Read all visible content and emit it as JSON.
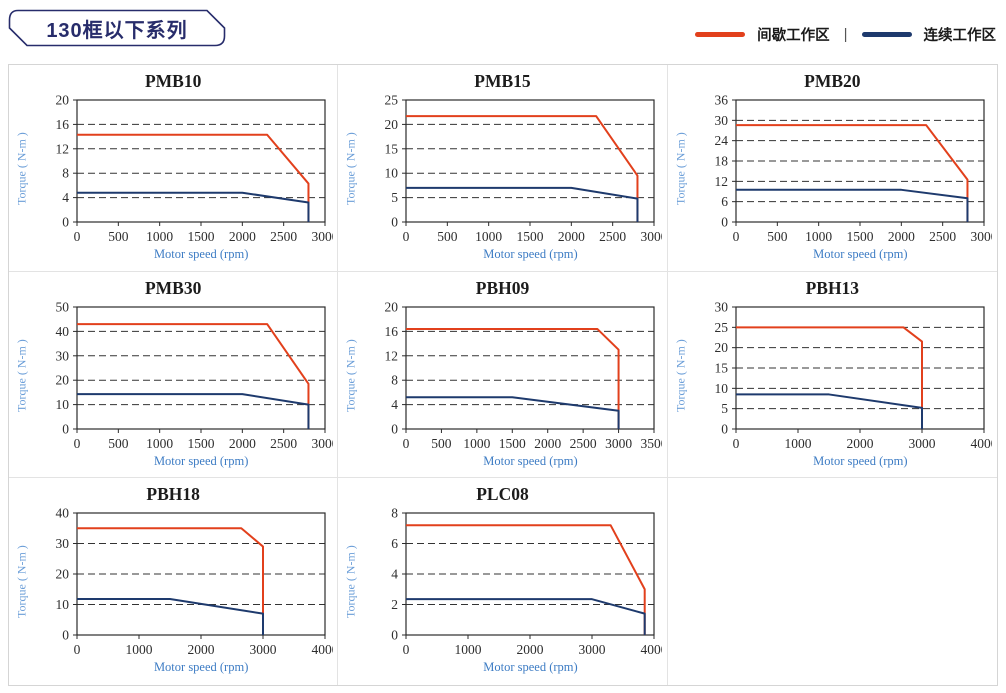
{
  "header": {
    "series_badge": "130框以下系列",
    "legend": {
      "intermittent": {
        "label": "间歇工作区",
        "color": "#e2401c"
      },
      "separator": "|",
      "continuous": {
        "label": "连续工作区",
        "color": "#1e3a6d"
      }
    }
  },
  "colors": {
    "badge_navy": "#272c6b",
    "intermittent_red": "#e2401c",
    "continuous_navy": "#1e3a6d",
    "axis_label_blue": "#3d7cc4",
    "torque_label_blue": "#6b9ed8",
    "grid_black": "#333333",
    "panel_border": "#d5d5d5"
  },
  "chart_data": [
    {
      "type": "line",
      "title": "PMB10",
      "xlabel": "Motor speed (rpm)",
      "ylabel": "Torque ( N-m )",
      "xlim": [
        0,
        3000
      ],
      "xstep": 500,
      "ylim": [
        0,
        20
      ],
      "ystep": 4,
      "grid": "dashed-horizontal",
      "series": [
        {
          "name": "间歇工作区",
          "color": "#e2401c",
          "points": [
            [
              0,
              14.3
            ],
            [
              2300,
              14.3
            ],
            [
              2800,
              6.3
            ],
            [
              2800,
              0
            ]
          ]
        },
        {
          "name": "连续工作区",
          "color": "#1e3a6d",
          "points": [
            [
              0,
              4.8
            ],
            [
              2000,
              4.8
            ],
            [
              2800,
              3.2
            ],
            [
              2800,
              0
            ]
          ]
        }
      ]
    },
    {
      "type": "line",
      "title": "PMB15",
      "xlabel": "Motor speed (rpm)",
      "ylabel": "Torque ( N-m )",
      "xlim": [
        0,
        3000
      ],
      "xstep": 500,
      "ylim": [
        0,
        25
      ],
      "ystep": 5,
      "grid": "dashed-horizontal",
      "series": [
        {
          "name": "间歇工作区",
          "color": "#e2401c",
          "points": [
            [
              0,
              21.7
            ],
            [
              2300,
              21.7
            ],
            [
              2800,
              9.5
            ],
            [
              2800,
              0
            ]
          ]
        },
        {
          "name": "连续工作区",
          "color": "#1e3a6d",
          "points": [
            [
              0,
              7
            ],
            [
              2000,
              7
            ],
            [
              2800,
              4.8
            ],
            [
              2800,
              0
            ]
          ]
        }
      ]
    },
    {
      "type": "line",
      "title": "PMB20",
      "xlabel": "Motor speed (rpm)",
      "ylabel": "Torque ( N-m )",
      "xlim": [
        0,
        3000
      ],
      "xstep": 500,
      "ylim": [
        0,
        36
      ],
      "ystep": 6,
      "grid": "dashed-horizontal",
      "series": [
        {
          "name": "间歇工作区",
          "color": "#e2401c",
          "points": [
            [
              0,
              28.6
            ],
            [
              2300,
              28.6
            ],
            [
              2800,
              12.5
            ],
            [
              2800,
              0
            ]
          ]
        },
        {
          "name": "连续工作区",
          "color": "#1e3a6d",
          "points": [
            [
              0,
              9.5
            ],
            [
              2000,
              9.5
            ],
            [
              2800,
              7
            ],
            [
              2800,
              0
            ]
          ]
        }
      ]
    },
    {
      "type": "line",
      "title": "PMB30",
      "xlabel": "Motor speed (rpm)",
      "ylabel": "Torque ( N-m )",
      "xlim": [
        0,
        3000
      ],
      "xstep": 500,
      "ylim": [
        0,
        50
      ],
      "ystep": 10,
      "grid": "dashed-horizontal",
      "series": [
        {
          "name": "间歇工作区",
          "color": "#e2401c",
          "points": [
            [
              0,
              43
            ],
            [
              2300,
              43
            ],
            [
              2800,
              18.5
            ],
            [
              2800,
              0
            ]
          ]
        },
        {
          "name": "连续工作区",
          "color": "#1e3a6d",
          "points": [
            [
              0,
              14.3
            ],
            [
              2000,
              14.3
            ],
            [
              2800,
              10
            ],
            [
              2800,
              0
            ]
          ]
        }
      ]
    },
    {
      "type": "line",
      "title": "PBH09",
      "xlabel": "Motor speed (rpm)",
      "ylabel": "Torque ( N-m )",
      "xlim": [
        0,
        3500
      ],
      "xstep": 500,
      "ylim": [
        0,
        20
      ],
      "ystep": 4,
      "grid": "dashed-horizontal",
      "series": [
        {
          "name": "间歇工作区",
          "color": "#e2401c",
          "points": [
            [
              0,
              16.4
            ],
            [
              2700,
              16.4
            ],
            [
              3000,
              13
            ],
            [
              3000,
              0
            ]
          ]
        },
        {
          "name": "连续工作区",
          "color": "#1e3a6d",
          "points": [
            [
              0,
              5.2
            ],
            [
              1500,
              5.2
            ],
            [
              3000,
              3
            ],
            [
              3000,
              0
            ]
          ]
        }
      ]
    },
    {
      "type": "line",
      "title": "PBH13",
      "xlabel": "Motor speed (rpm)",
      "ylabel": "Torque ( N-m )",
      "xlim": [
        0,
        4000
      ],
      "xstep": 1000,
      "ylim": [
        0,
        30
      ],
      "ystep": 5,
      "grid": "dashed-horizontal",
      "series": [
        {
          "name": "间歇工作区",
          "color": "#e2401c",
          "points": [
            [
              0,
              25
            ],
            [
              2700,
              25
            ],
            [
              3000,
              21.5
            ],
            [
              3000,
              0
            ]
          ]
        },
        {
          "name": "连续工作区",
          "color": "#1e3a6d",
          "points": [
            [
              0,
              8.5
            ],
            [
              1500,
              8.5
            ],
            [
              3000,
              5.2
            ],
            [
              3000,
              0
            ]
          ]
        }
      ]
    },
    {
      "type": "line",
      "title": "PBH18",
      "xlabel": "Motor speed (rpm)",
      "ylabel": "Torque ( N-m )",
      "xlim": [
        0,
        4000
      ],
      "xstep": 1000,
      "ylim": [
        0,
        40
      ],
      "ystep": 10,
      "grid": "dashed-horizontal",
      "series": [
        {
          "name": "间歇工作区",
          "color": "#e2401c",
          "points": [
            [
              0,
              35
            ],
            [
              2650,
              35
            ],
            [
              3000,
              29
            ],
            [
              3000,
              0
            ]
          ]
        },
        {
          "name": "连续工作区",
          "color": "#1e3a6d",
          "points": [
            [
              0,
              11.8
            ],
            [
              1500,
              11.8
            ],
            [
              3000,
              7
            ],
            [
              3000,
              0
            ]
          ]
        }
      ]
    },
    {
      "type": "line",
      "title": "PLC08",
      "xlabel": "Motor speed (rpm)",
      "ylabel": "Torque ( N-m )",
      "xlim": [
        0,
        4000
      ],
      "xstep": 1000,
      "ylim": [
        0,
        8
      ],
      "ystep": 2,
      "grid": "dashed-horizontal",
      "series": [
        {
          "name": "间歇工作区",
          "color": "#e2401c",
          "points": [
            [
              0,
              7.2
            ],
            [
              3300,
              7.2
            ],
            [
              3850,
              3
            ],
            [
              3850,
              0
            ]
          ]
        },
        {
          "name": "连续工作区",
          "color": "#1e3a6d",
          "points": [
            [
              0,
              2.35
            ],
            [
              3000,
              2.35
            ],
            [
              3850,
              1.4
            ],
            [
              3850,
              0
            ]
          ]
        }
      ]
    }
  ]
}
